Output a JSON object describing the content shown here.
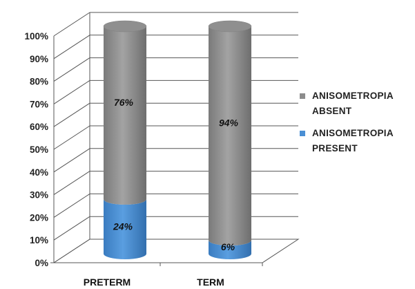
{
  "chart_data": {
    "type": "bar",
    "stacked": true,
    "categories": [
      "PRETERM",
      "TERM"
    ],
    "series": [
      {
        "name": "ANISOMETROPIA PRESENT",
        "values": [
          24,
          6
        ],
        "labels": [
          "24%",
          "6%"
        ],
        "color": "#4a8fd4"
      },
      {
        "name": "ANISOMETROPIA ABSENT",
        "values": [
          76,
          94
        ],
        "labels": [
          "76%",
          "94%"
        ],
        "color": "#8c8c8c"
      }
    ],
    "ylim": [
      0,
      100
    ],
    "yticks": [
      "0%",
      "10%",
      "20%",
      "30%",
      "40%",
      "50%",
      "60%",
      "70%",
      "80%",
      "90%",
      "100%"
    ],
    "legend": {
      "position": "right",
      "items": [
        {
          "line1": "ANISOMETROPIA",
          "line2": "ABSENT",
          "color": "#8c8c8c"
        },
        {
          "line1": "ANISOMETROPIA",
          "line2": "PRESENT",
          "color": "#4a8fd4"
        }
      ]
    },
    "grid": true
  }
}
